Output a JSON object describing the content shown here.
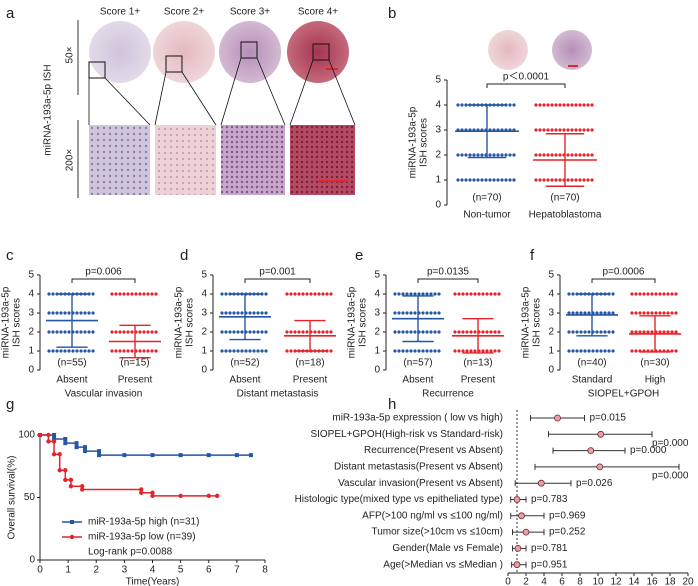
{
  "panel_a": {
    "letter": "a",
    "columns": [
      "Score 1+",
      "Score 2+",
      "Score 3+",
      "Score 4+"
    ],
    "row_labels": [
      "50×",
      "200×"
    ],
    "y_label": "miRNA-193a-5p ISH"
  },
  "chart_data": [
    {
      "letter": "b",
      "type": "strip",
      "ylabel": [
        "miRNA-193a-5p",
        "ISH scores"
      ],
      "categories": [
        "Non-tumor",
        "Hepatoblastoma"
      ],
      "n_labels": [
        "(n=70)",
        "(n=70)"
      ],
      "p_label": "p＜0.0001",
      "colors": [
        "#2456a4",
        "#e3242b"
      ],
      "means": [
        2.95,
        1.8
      ],
      "sds": [
        1.05,
        1.05
      ],
      "scores": [
        [
          1,
          2,
          3,
          4
        ],
        [
          1,
          2,
          3,
          4
        ]
      ],
      "ylim": [
        0,
        5
      ],
      "yticks": [
        0,
        1,
        2,
        3,
        4,
        5
      ]
    },
    {
      "letter": "c",
      "type": "strip",
      "ylabel": [
        "miRNA-193a-5p",
        "ISH scores"
      ],
      "xlabel": "Vascular invasion",
      "categories": [
        "Absent",
        "Present"
      ],
      "n_labels": [
        "(n=55)",
        "(n=15)"
      ],
      "p_label": "p=0.006",
      "colors": [
        "#2456a4",
        "#e3242b"
      ],
      "means": [
        2.6,
        1.5
      ],
      "sds": [
        1.4,
        0.85
      ],
      "scores": [
        [
          1,
          2,
          3,
          4
        ],
        [
          1,
          2,
          4
        ]
      ],
      "ylim": [
        0,
        5
      ],
      "yticks": [
        0,
        1,
        2,
        3,
        4,
        5
      ]
    },
    {
      "letter": "d",
      "type": "strip",
      "ylabel": [
        "miRNA-193a-5p",
        "ISH scores"
      ],
      "xlabel": "Distant metastasis",
      "categories": [
        "Absent",
        "Present"
      ],
      "n_labels": [
        "(n=52)",
        "(n=18)"
      ],
      "p_label": "p=0.001",
      "colors": [
        "#2456a4",
        "#e3242b"
      ],
      "means": [
        2.8,
        1.8
      ],
      "sds": [
        1.2,
        0.8
      ],
      "scores": [
        [
          1,
          2,
          3,
          4
        ],
        [
          1,
          2,
          4
        ]
      ],
      "ylim": [
        0,
        5
      ],
      "yticks": [
        0,
        1,
        2,
        3,
        4,
        5
      ]
    },
    {
      "letter": "e",
      "type": "strip",
      "ylabel": [
        "miRNA-193a-5p",
        "ISH scores"
      ],
      "xlabel": "Recurrence",
      "categories": [
        "Absent",
        "Present"
      ],
      "n_labels": [
        "(n=57)",
        "(n=13)"
      ],
      "p_label": "p=0.0135",
      "colors": [
        "#2456a4",
        "#e3242b"
      ],
      "means": [
        2.7,
        1.8
      ],
      "sds": [
        1.2,
        0.9
      ],
      "scores": [
        [
          1,
          2,
          3,
          4
        ],
        [
          1,
          2,
          4
        ]
      ],
      "ylim": [
        0,
        5
      ],
      "yticks": [
        0,
        1,
        2,
        3,
        4,
        5
      ]
    },
    {
      "letter": "f",
      "type": "strip",
      "ylabel": [
        "miRNA-193a-5p",
        "ISH scores"
      ],
      "xlabel": "SIOPEL+GPOH",
      "categories": [
        "Standard",
        "High"
      ],
      "n_labels": [
        "(n=40)",
        "(n=30)"
      ],
      "p_label": "p=0.0006",
      "colors": [
        "#2456a4",
        "#e3242b"
      ],
      "means": [
        2.9,
        1.9
      ],
      "sds": [
        1.1,
        0.95
      ],
      "scores": [
        [
          1,
          2,
          3,
          4
        ],
        [
          1,
          2,
          3,
          4
        ]
      ],
      "ylim": [
        0,
        5
      ],
      "yticks": [
        0,
        1,
        2,
        3,
        4,
        5
      ]
    },
    {
      "letter": "g",
      "type": "line",
      "ylabel": "Overall survival(%)",
      "xlabel": "Time(Years)",
      "annotation": "Log-rank p=0.0088",
      "xlim": [
        0,
        8
      ],
      "xticks": [
        0,
        1,
        2,
        3,
        4,
        5,
        6,
        7,
        8
      ],
      "ylim": [
        0,
        100
      ],
      "yticks": [
        0,
        50,
        100
      ],
      "series": [
        {
          "name": "miR-193a-5p high (n=31)",
          "color": "#2456a4",
          "x": [
            0,
            0.5,
            0.5,
            0.9,
            0.9,
            1.3,
            1.3,
            1.6,
            1.6,
            2.1,
            2.1,
            3,
            4,
            5,
            6,
            7,
            7.5
          ],
          "values": [
            100,
            100,
            96.8,
            96.8,
            93.5,
            93.5,
            90.3,
            90.3,
            87.1,
            87.1,
            83.9,
            83.9,
            83.9,
            83.9,
            83.9,
            83.9,
            83.9
          ]
        },
        {
          "name": "miR-193a-5p low (n=39)",
          "color": "#e3242b",
          "x": [
            0,
            0.3,
            0.3,
            0.5,
            0.5,
            0.7,
            0.7,
            0.9,
            0.9,
            1.1,
            1.1,
            1.5,
            1.5,
            3.6,
            3.6,
            4,
            4,
            5,
            6,
            6.3
          ],
          "values": [
            100,
            100,
            94.9,
            94.9,
            84.6,
            84.6,
            71.8,
            71.8,
            64.1,
            64.1,
            59,
            59,
            56.4,
            56.4,
            53.8,
            53.8,
            51.3,
            51.3,
            51.3,
            51.3
          ]
        }
      ]
    },
    {
      "letter": "h",
      "type": "forest",
      "xlim": [
        0,
        20
      ],
      "xticks": [
        0,
        2,
        4,
        6,
        8,
        10,
        12,
        14,
        16,
        18,
        20
      ],
      "ref_line": 1,
      "color": "#e8a0a0",
      "rows": [
        {
          "label": "miR-193a-5p expression ( low vs high)",
          "value": 5.5,
          "lower": 2.5,
          "upper": 8.5,
          "p_label": "p=0.015"
        },
        {
          "label": "SIOPEL+GPOH(High-risk vs Standard-risk)",
          "value": 10.3,
          "lower": 4.5,
          "upper": 16,
          "p_label": "p=0.000"
        },
        {
          "label": "Recurrence(Present vs Absent)",
          "value": 9.2,
          "lower": 5,
          "upper": 13,
          "p_label": "p=0.000"
        },
        {
          "label": "Distant metastasis(Present vs Absent)",
          "value": 10.2,
          "lower": 3,
          "upper": 19,
          "p_label": "p=0.000"
        },
        {
          "label": "Vascular invasion(Present vs Absent)",
          "value": 3.7,
          "lower": 0.8,
          "upper": 7,
          "p_label": "p=0.026"
        },
        {
          "label": "Histologic type(mixed type vs epitheliated type)",
          "value": 1,
          "lower": 0.3,
          "upper": 2,
          "p_label": "p=0.783"
        },
        {
          "label": "AFP(>100 ng/ml vs ≤100 ng/ml)",
          "value": 1.5,
          "lower": 0.3,
          "upper": 4,
          "p_label": "p=0.969"
        },
        {
          "label": "Tumor size(>10cm vs ≤10cm)",
          "value": 2,
          "lower": 0.5,
          "upper": 4,
          "p_label": "p=0.252"
        },
        {
          "label": "Gender(Male vs Female)",
          "value": 1.1,
          "lower": 0.5,
          "upper": 2,
          "p_label": "p=0.781"
        },
        {
          "label": "Age(>Median vs ≤Median )",
          "value": 1,
          "lower": 0.4,
          "upper": 2,
          "p_label": "p=0.951"
        }
      ]
    }
  ]
}
